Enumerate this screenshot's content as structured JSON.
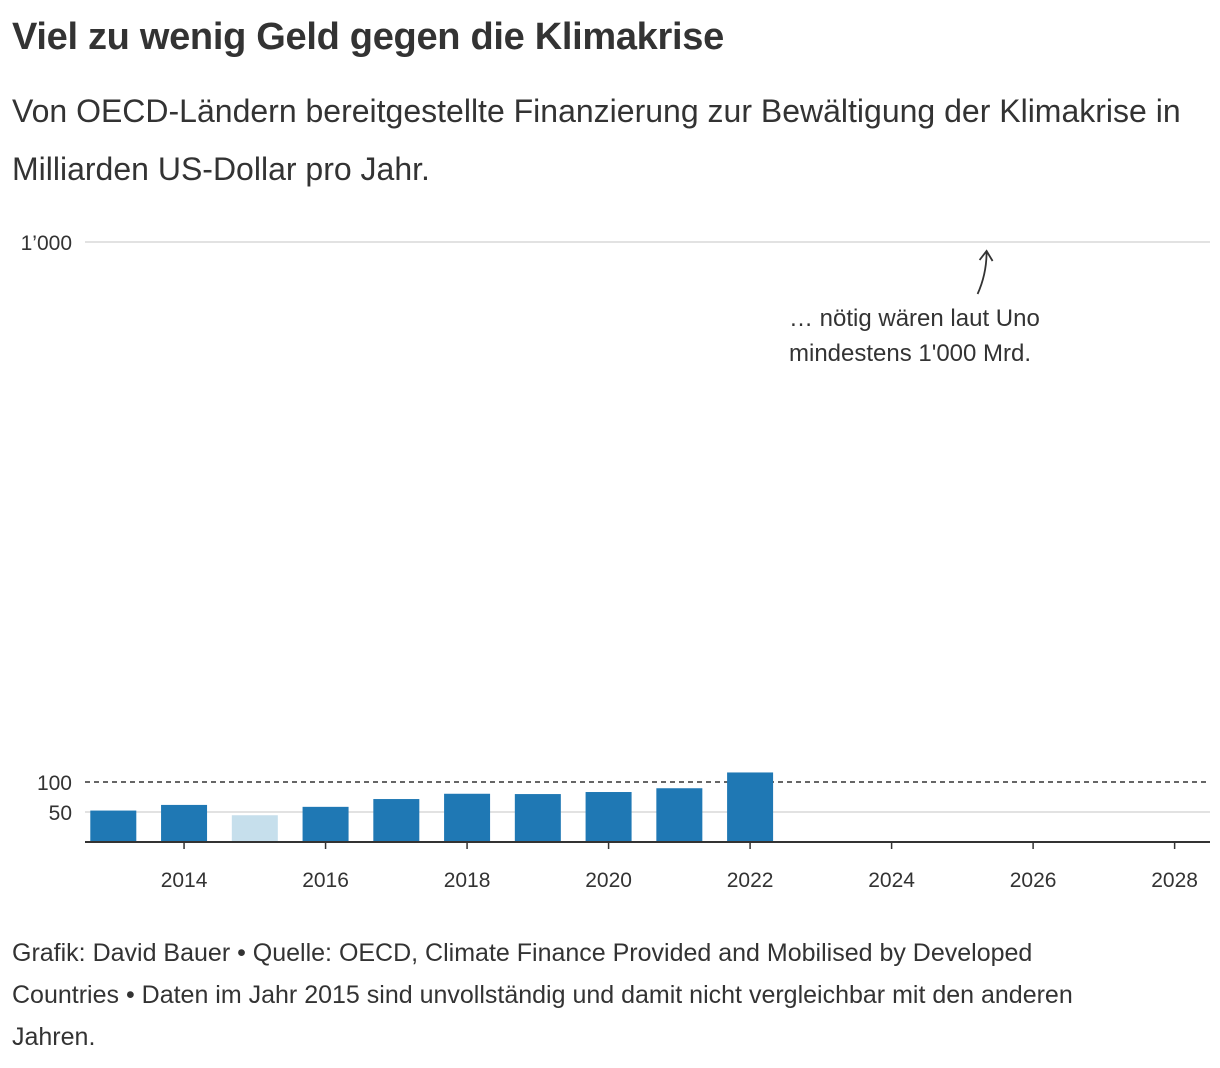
{
  "title": "Viel zu wenig Geld gegen die Klimakrise",
  "subtitle": "Von OECD-Ländern bereitgestellte Finanzierung zur Bewältigung der Klimakrise in Milliarden US-Dollar pro Jahr.",
  "footer": "Grafik: David Bauer • Quelle: OECD, Climate Finance Provided and Mobilised by Developed Countries • Daten im Jahr 2015 sind unvollständig und damit nicht vergleichbar mit den anderen Jahren.",
  "colors": {
    "bar": "#1f78b4",
    "bar_incomplete": "#c6dfec",
    "grid": "#d9d9d9",
    "text": "#333333"
  },
  "chart_data": {
    "type": "bar",
    "title": "Viel zu wenig Geld gegen die Klimakrise",
    "xlabel": "",
    "ylabel": "",
    "x": [
      2013,
      2014,
      2015,
      2016,
      2017,
      2018,
      2019,
      2020,
      2021,
      2022
    ],
    "values": [
      52.4,
      61.8,
      44.6,
      58.6,
      71.6,
      80.4,
      79.9,
      83.3,
      89.6,
      115.9
    ],
    "incomplete_years": [
      2015
    ],
    "xlim": [
      2012.6,
      2028.5
    ],
    "xticks": [
      2014,
      2016,
      2018,
      2020,
      2022,
      2024,
      2026,
      2028
    ],
    "xtick_labels": [
      "2014",
      "2016",
      "2018",
      "2020",
      "2022",
      "2024",
      "2026",
      "2028"
    ],
    "ylim": [
      0,
      1000
    ],
    "y_scale": "broken: 0–100 compressed, 100–1000 stretched",
    "yticks": [
      50,
      100,
      1000
    ],
    "ytick_labels": [
      "50",
      "100",
      "1’000"
    ],
    "reference_line": {
      "value": 100,
      "style": "dashed"
    },
    "annotation": {
      "lines": [
        "… nötig wären laut Uno",
        "mindestens 1'000 Mrd."
      ],
      "target_value": 1000,
      "arrow_x": 2025.3
    }
  }
}
